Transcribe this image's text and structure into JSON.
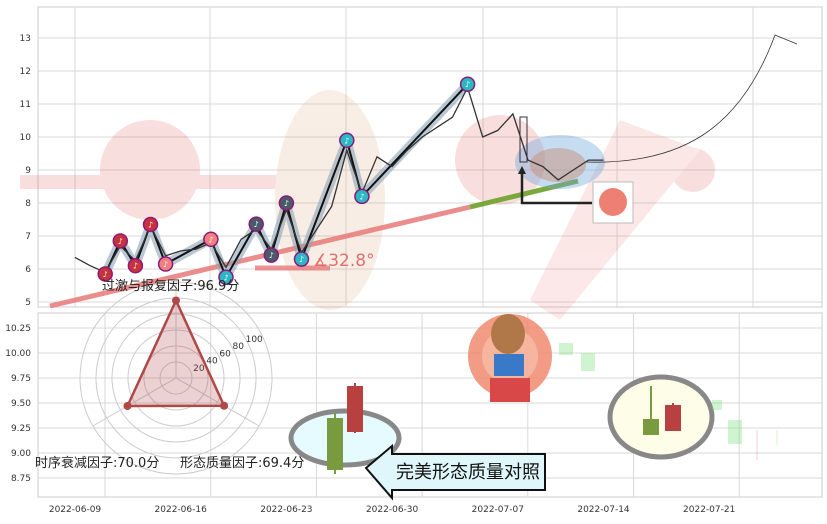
{
  "colors": {
    "price_line": "#333333",
    "trend_red": "#e87a7a",
    "trend_green": "#7aa83c",
    "pivot_red": "#c8323c",
    "pivot_teal": "#2bb8c4",
    "pivot_dark": "#4a5a68",
    "radar": "#b04848",
    "candle_up": "#7a9a40",
    "candle_down": "#b84040"
  },
  "chart_data": [
    {
      "type": "line",
      "panel": "top",
      "yticks": [
        5,
        6,
        7,
        8,
        9,
        10,
        11,
        12,
        13
      ],
      "ylim": [
        5,
        13.8
      ],
      "xlim": [
        "2022-06-07",
        "2022-07-28"
      ],
      "price": {
        "x": [
          "2022-06-09",
          "2022-06-10",
          "2022-06-11",
          "2022-06-12",
          "2022-06-13",
          "2022-06-14",
          "2022-06-15",
          "2022-06-16",
          "2022-06-17",
          "2022-06-18",
          "2022-06-19",
          "2022-06-20",
          "2022-06-21",
          "2022-06-22",
          "2022-06-23",
          "2022-06-24",
          "2022-06-25",
          "2022-06-26",
          "2022-06-27",
          "2022-06-28",
          "2022-06-29",
          "2022-06-30",
          "2022-07-01",
          "2022-07-02",
          "2022-07-03",
          "2022-07-04",
          "2022-07-05",
          "2022-07-06",
          "2022-07-07",
          "2022-07-08",
          "2022-07-09",
          "2022-07-10",
          "2022-07-11",
          "2022-07-12",
          "2022-07-13",
          "2022-07-14"
        ],
        "y": [
          6.35,
          6.1,
          5.9,
          6.7,
          6.25,
          7.3,
          6.4,
          6.55,
          6.6,
          6.8,
          6.05,
          6.9,
          7.2,
          6.6,
          7.8,
          6.5,
          7.2,
          7.9,
          9.6,
          8.3,
          9.4,
          9.1,
          9.6,
          10.0,
          10.3,
          10.6,
          11.5,
          10.0,
          10.2,
          10.7,
          9.3,
          9.1,
          8.7,
          9.0,
          9.3,
          9.3
        ]
      },
      "pivots": {
        "x": [
          "2022-06-11",
          "2022-06-12",
          "2022-06-13",
          "2022-06-14",
          "2022-06-15",
          "2022-06-18",
          "2022-06-19",
          "2022-06-21",
          "2022-06-22",
          "2022-06-23",
          "2022-06-24",
          "2022-06-27",
          "2022-06-28",
          "2022-07-05"
        ],
        "y": [
          5.85,
          6.85,
          6.1,
          7.35,
          6.15,
          6.9,
          5.75,
          7.36,
          6.42,
          8.0,
          6.3,
          9.9,
          8.2,
          11.6
        ]
      },
      "trend_angle_label": "∡32.8°"
    },
    {
      "type": "candlestick",
      "panel": "bottom",
      "yticks": [
        "8.75",
        "9.00",
        "9.25",
        "9.50",
        "9.75",
        "10.00",
        "10.25"
      ],
      "ylim": [
        8.6,
        10.35
      ],
      "xticks": [
        "2022-06-09",
        "2022-06-16",
        "2022-06-23",
        "2022-06-30",
        "2022-07-07",
        "2022-07-14",
        "2022-07-21"
      ],
      "candles_left": [
        {
          "open": 8.83,
          "close": 9.35,
          "high": 9.4,
          "low": 8.79
        },
        {
          "open": 9.67,
          "close": 9.21,
          "high": 9.7,
          "low": 9.2
        }
      ],
      "candles_right": [
        {
          "open": 9.18,
          "close": 9.34,
          "high": 9.67,
          "low": 9.18
        },
        {
          "open": 9.48,
          "close": 9.22,
          "high": 9.5,
          "low": 9.22
        }
      ]
    },
    {
      "type": "radar",
      "ring_labels": [
        "20",
        "40",
        "60",
        "80",
        "100"
      ],
      "factors": [
        {
          "label": "过激与报复因子:96.9分",
          "value": 96.9
        },
        {
          "label": "时序衰减因子:70.0分",
          "value": 70.0
        },
        {
          "label": "形态质量因子:69.4分",
          "value": 69.4
        }
      ]
    }
  ],
  "callout": {
    "label": "完美形态质量对照"
  }
}
